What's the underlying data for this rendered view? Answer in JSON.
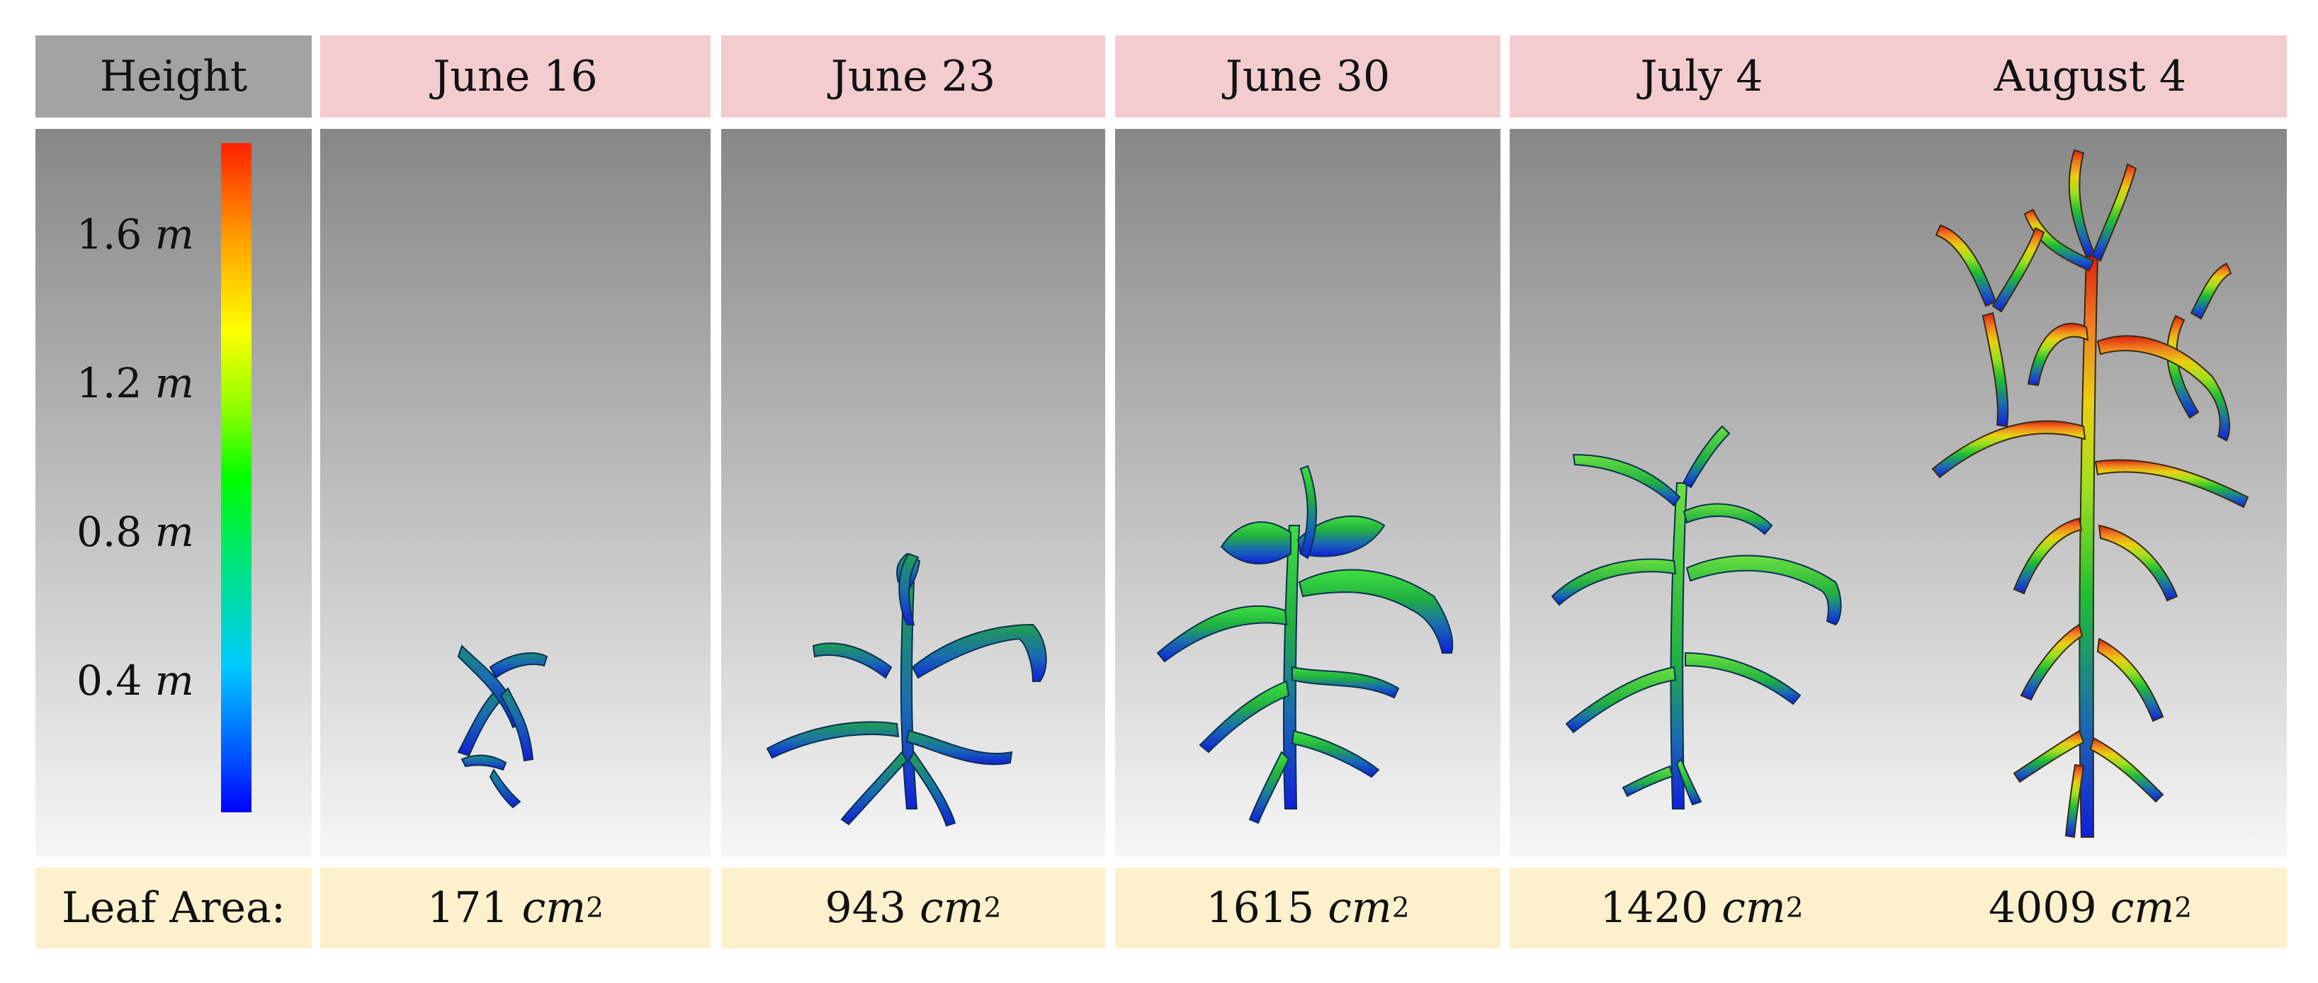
{
  "header": {
    "corner": "Height",
    "dates": [
      "June 16",
      "June 23",
      "June 30",
      "July 4",
      "August 4"
    ]
  },
  "legend": {
    "ticks": [
      {
        "value": "1.6",
        "unit": "m"
      },
      {
        "value": "1.2",
        "unit": "m"
      },
      {
        "value": "0.8",
        "unit": "m"
      },
      {
        "value": "0.4",
        "unit": "m"
      }
    ],
    "colors": [
      "#0000ff",
      "#00ff00",
      "#ffff00",
      "#ff2000"
    ]
  },
  "footer": {
    "label": "Leaf Area:",
    "areas": [
      {
        "value": "171",
        "unit": "cm",
        "exp": "2"
      },
      {
        "value": "943",
        "unit": "cm",
        "exp": "2"
      },
      {
        "value": "1615",
        "unit": "cm",
        "exp": "2"
      },
      {
        "value": "1420",
        "unit": "cm",
        "exp": "2"
      },
      {
        "value": "4009",
        "unit": "cm",
        "exp": "2"
      }
    ]
  }
}
